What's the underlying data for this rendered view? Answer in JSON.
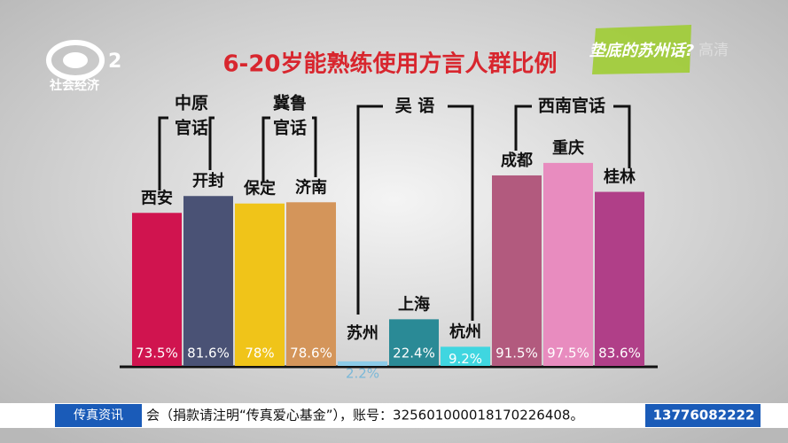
{
  "channel": {
    "logo_number": "2",
    "name": "社会经济"
  },
  "program": {
    "tag": "垫底的苏州话?",
    "quality": "高清"
  },
  "chart_data": {
    "type": "bar",
    "title": "6-20岁能熟练使用方言人群比例",
    "categories": [
      "西安",
      "开封",
      "保定",
      "济南",
      "苏州",
      "上海",
      "杭州",
      "成都",
      "重庆",
      "桂林"
    ],
    "values": [
      73.5,
      81.6,
      78,
      78.6,
      2.2,
      22.4,
      9.2,
      91.5,
      97.5,
      83.6
    ],
    "value_labels": [
      "73.5%",
      "81.6%",
      "78%",
      "78.6%",
      "2.2%",
      "22.4%",
      "9.2%",
      "91.5%",
      "97.5%",
      "83.6%"
    ],
    "colors": [
      "#d0144f",
      "#4a5275",
      "#f0c419",
      "#d4955a",
      "#8ccbe8",
      "#2a8a96",
      "#3fd6e0",
      "#b25a7e",
      "#e88cbf",
      "#b03f88"
    ],
    "groups": [
      {
        "label_lines": [
          "中原",
          "官话"
        ]
      },
      {
        "label_lines": [
          "冀鲁",
          "官话"
        ]
      },
      {
        "label_lines": [
          "吴 语"
        ]
      },
      {
        "label_lines": [
          "西南官话"
        ]
      }
    ]
  },
  "ticker": {
    "label": "传真资讯",
    "text": "会（捐款请注明“传真爱心基金”），账号：325601000018170226408。",
    "phone": "13776082222"
  }
}
